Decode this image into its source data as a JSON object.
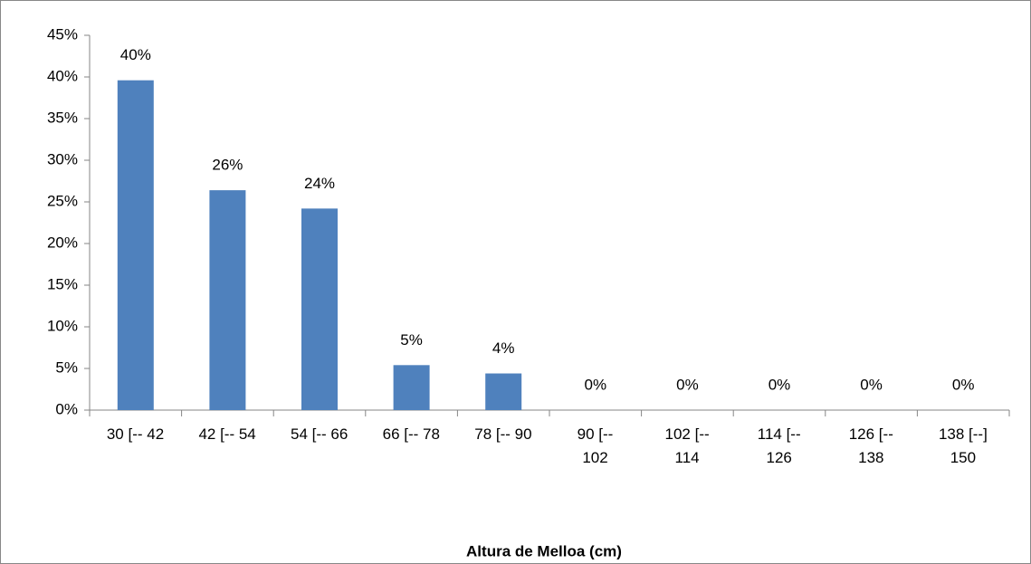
{
  "chart_data": {
    "type": "bar",
    "x_label": "Altura de Melloa (cm)",
    "categories": [
      "30 [-- 42",
      "42 [-- 54",
      "54 [-- 66",
      "66 [-- 78",
      "78 [-- 90",
      "90 [--\n102",
      "102 [--\n114",
      "114 [--\n126",
      "126 [--\n138",
      "138 [--]\n150"
    ],
    "values": [
      39.6,
      26.4,
      24.2,
      5.4,
      4.4,
      0,
      0,
      0,
      0,
      0
    ],
    "value_labels": [
      "40%",
      "26%",
      "24%",
      "5%",
      "4%",
      "0%",
      "0%",
      "0%",
      "0%",
      "0%"
    ],
    "color": "#4f81bd",
    "ylim": [
      0,
      45
    ],
    "yticks": [
      {
        "value": 0,
        "label": "0%"
      },
      {
        "value": 5,
        "label": "5%"
      },
      {
        "value": 10,
        "label": "10%"
      },
      {
        "value": 15,
        "label": "15%"
      },
      {
        "value": 20,
        "label": "20%"
      },
      {
        "value": 25,
        "label": "25%"
      },
      {
        "value": 30,
        "label": "30%"
      },
      {
        "value": 35,
        "label": "35%"
      },
      {
        "value": 40,
        "label": "40%"
      },
      {
        "value": 45,
        "label": "45%"
      }
    ]
  }
}
